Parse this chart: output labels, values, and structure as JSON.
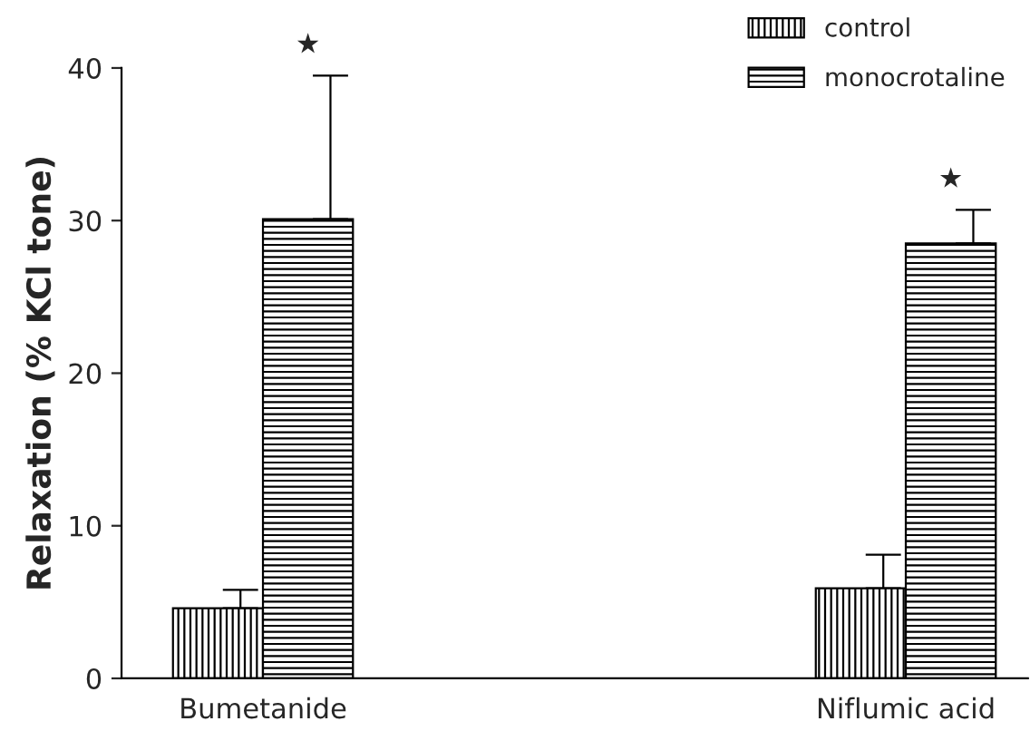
{
  "chart_data": {
    "type": "bar",
    "ylabel": "Relaxation (% KCl tone)",
    "categories": [
      "Bumetanide",
      "Niflumic acid"
    ],
    "series": [
      {
        "name": "control",
        "color": "#000000",
        "values": [
          4.6,
          5.9
        ],
        "errors": [
          [
            4.6,
            5.8
          ],
          [
            5.9,
            8.1
          ]
        ]
      },
      {
        "name": "monocrotaline",
        "color": "#000000",
        "values": [
          30.1,
          28.5
        ],
        "errors": [
          [
            30.1,
            39.5
          ],
          [
            28.5,
            30.7
          ]
        ]
      }
    ],
    "ylim": [
      0,
      40
    ],
    "yticks": [
      0,
      10,
      20,
      30,
      40
    ],
    "grid": false,
    "legend": "top right",
    "annotations": [
      "★",
      "★"
    ]
  }
}
